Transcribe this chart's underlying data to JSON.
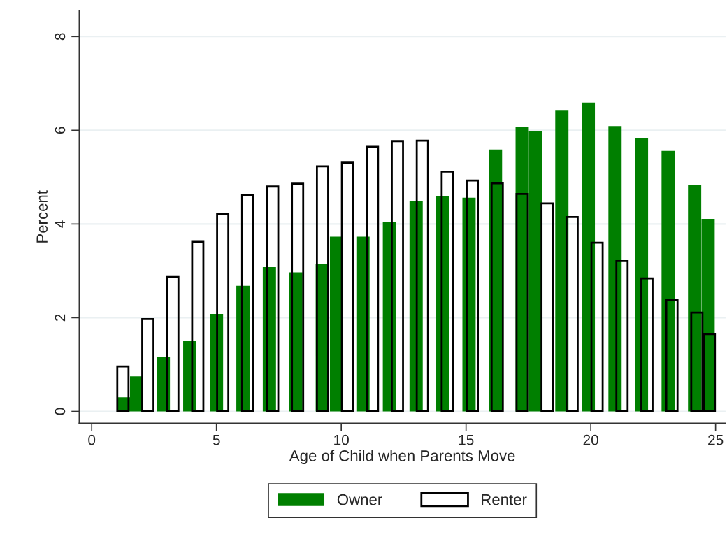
{
  "chart_data": {
    "type": "bar",
    "xlabel": "Age of Child when Parents Move",
    "ylabel": "Percent",
    "xlim": [
      -0.5,
      25.4
    ],
    "xticks": [
      0,
      5,
      10,
      15,
      20,
      25
    ],
    "ylim": [
      -0.25,
      8.55
    ],
    "yticks": [
      0,
      2,
      4,
      6,
      8
    ],
    "grid": "y",
    "legend": "bottom",
    "series": [
      {
        "name": "Owner",
        "color": "#007f00",
        "x": [
          1.27,
          1.8,
          2.87,
          3.93,
          5.0,
          6.06,
          7.12,
          8.18,
          9.24,
          9.81,
          10.87,
          11.93,
          13.0,
          14.06,
          15.12,
          16.18,
          17.25,
          17.78,
          18.84,
          19.9,
          20.97,
          22.03,
          23.1,
          24.16,
          24.7
        ],
        "values": [
          0.3,
          0.75,
          1.17,
          1.5,
          2.08,
          2.68,
          3.08,
          2.97,
          3.15,
          3.73,
          3.73,
          4.04,
          4.49,
          4.59,
          4.56,
          5.59,
          6.08,
          5.99,
          6.42,
          6.59,
          6.09,
          5.84,
          5.56,
          4.83,
          4.11
        ]
      },
      {
        "name": "Renter",
        "color": "#000000",
        "x": [
          1.25,
          2.25,
          3.25,
          4.25,
          5.25,
          6.25,
          7.25,
          8.25,
          9.25,
          10.25,
          11.25,
          12.25,
          13.25,
          14.25,
          15.25,
          16.25,
          17.25,
          18.25,
          19.25,
          20.25,
          21.25,
          22.25,
          23.25,
          24.25,
          24.75
        ],
        "values": [
          0.96,
          1.97,
          2.87,
          3.62,
          4.21,
          4.61,
          4.8,
          4.86,
          5.23,
          5.31,
          5.65,
          5.77,
          5.78,
          5.12,
          4.93,
          4.87,
          4.64,
          4.44,
          4.15,
          3.6,
          3.21,
          2.84,
          2.38,
          2.11,
          1.65
        ]
      }
    ]
  }
}
